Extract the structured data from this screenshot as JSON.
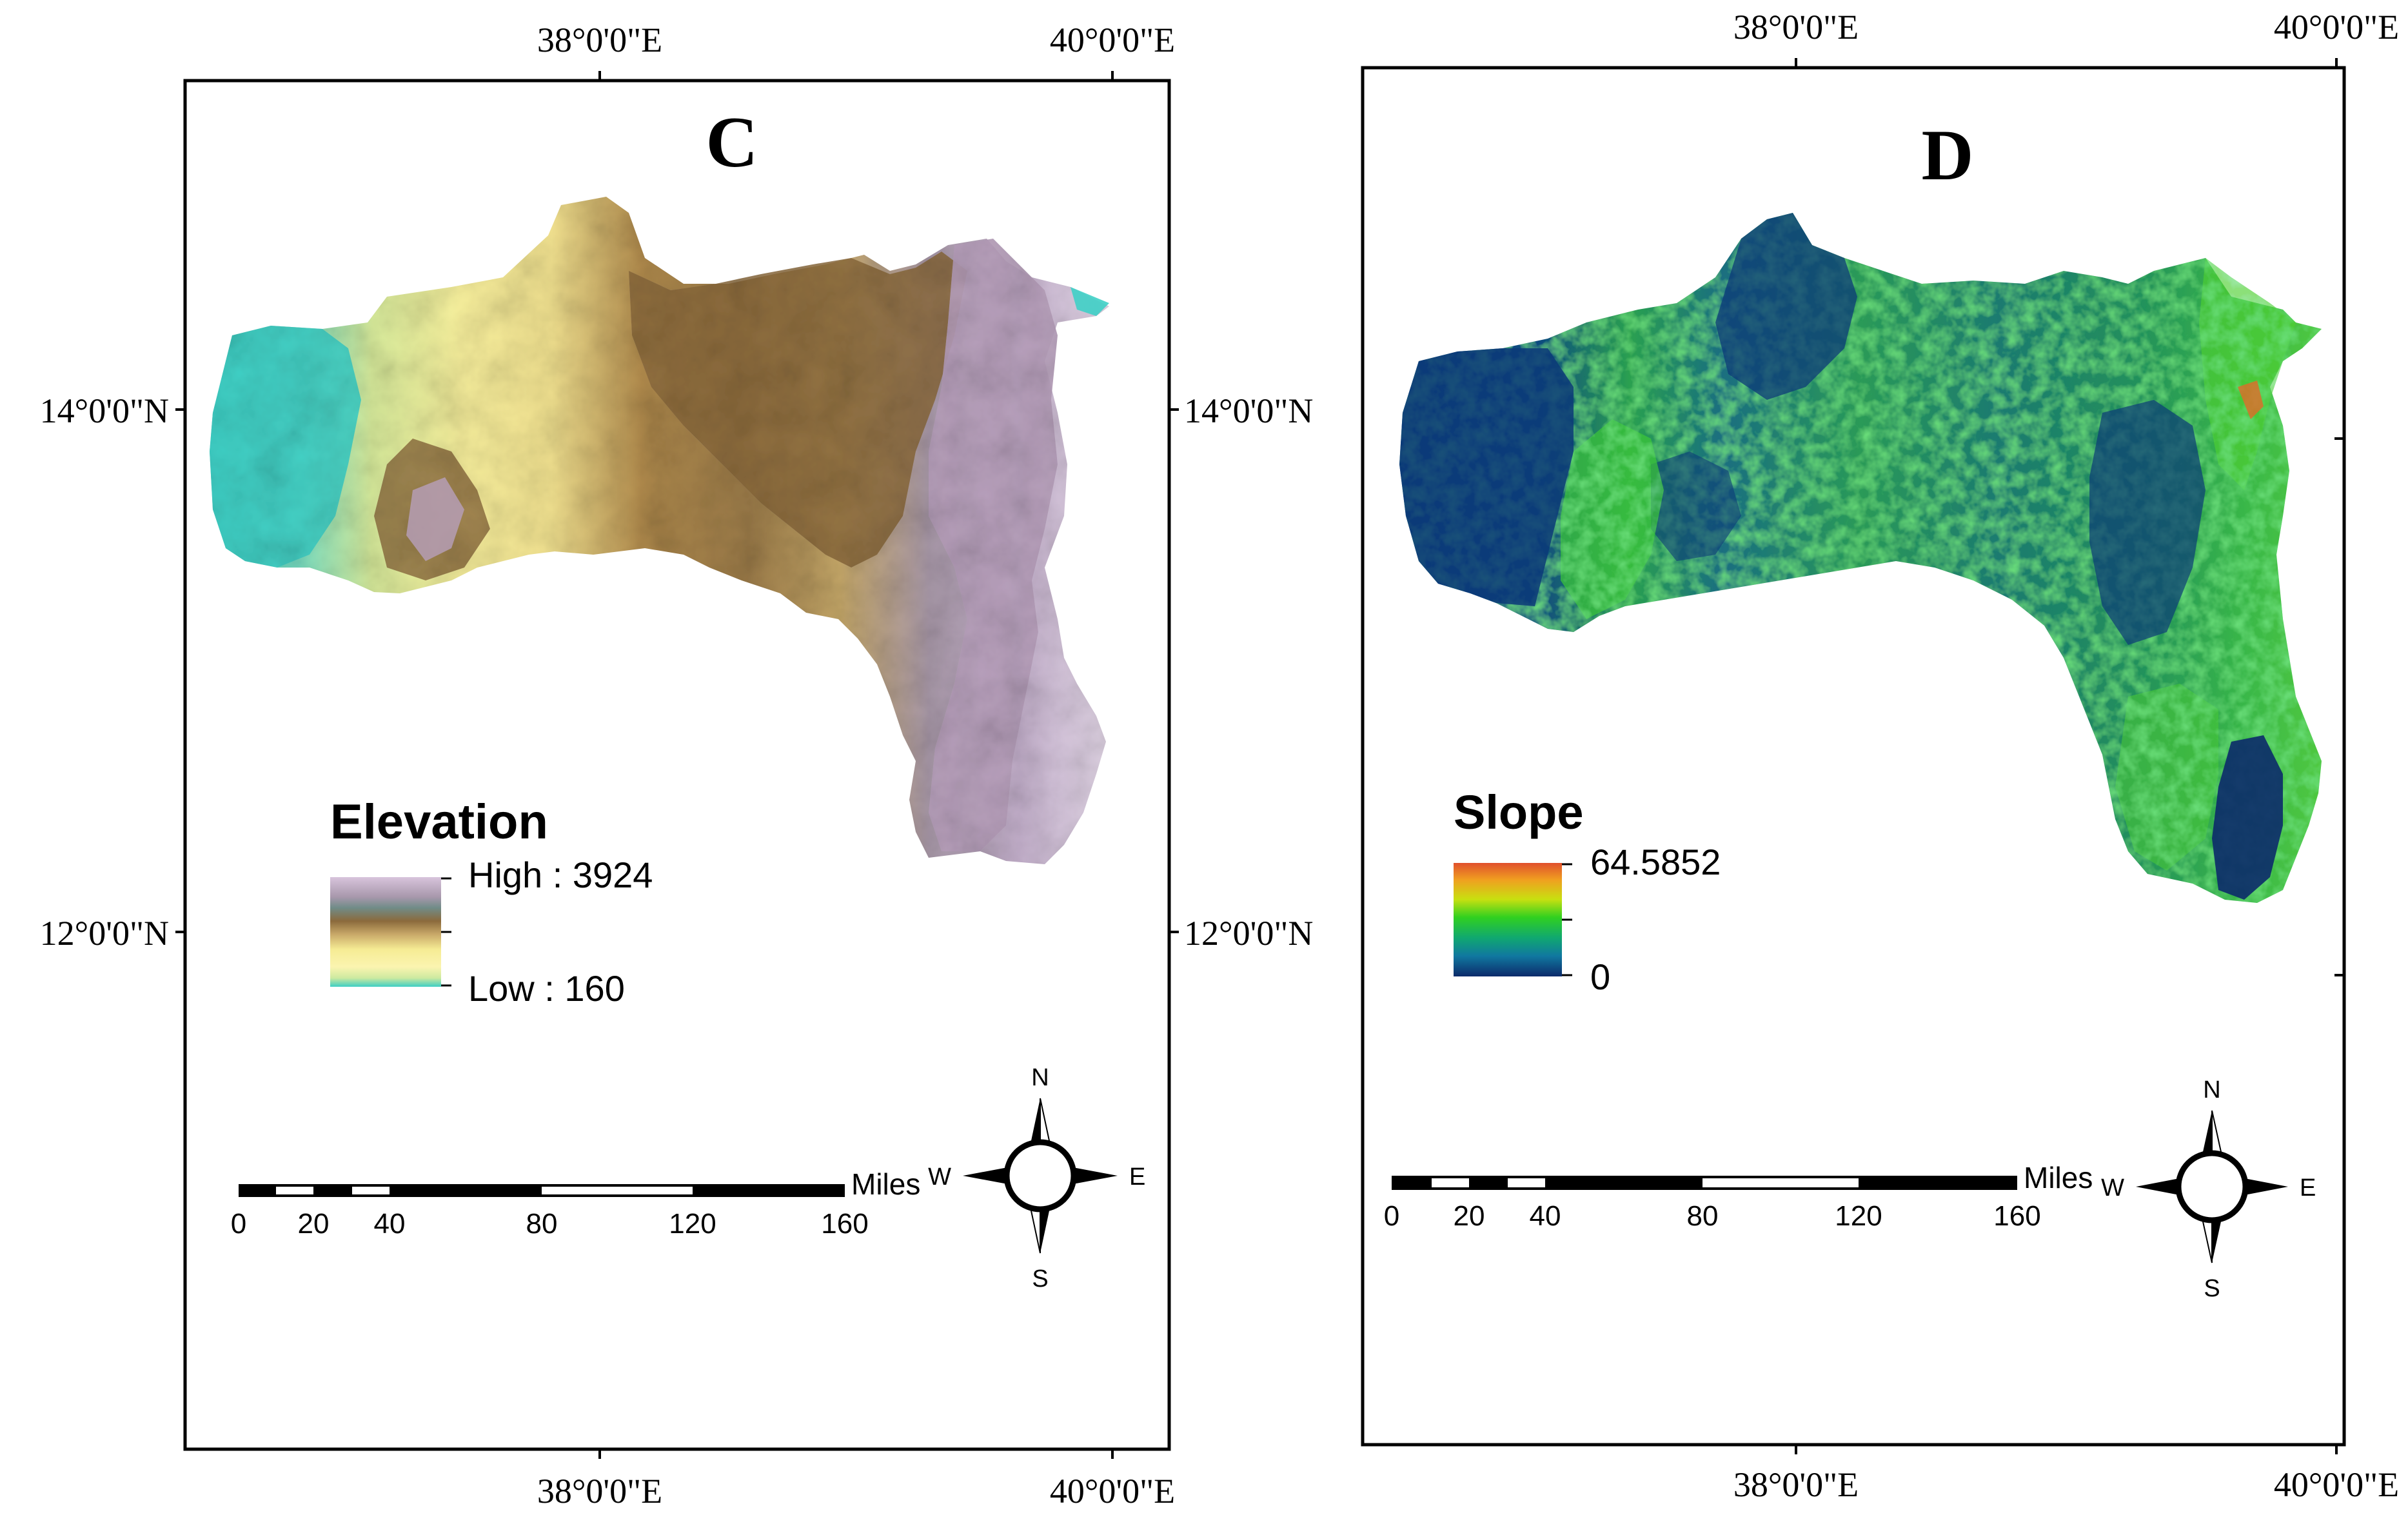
{
  "panels": [
    {
      "id": "C",
      "letter": "C",
      "top_lon_labels": [
        "38°0'0\"E",
        "40°0'0\"E"
      ],
      "bottom_lon_labels": [
        "38°0'0\"E",
        "40°0'0\"E"
      ],
      "left_lat_labels": [
        "14°0'0\"N",
        "12°0'0\"N"
      ],
      "right_lat_labels": [
        "14°0'0\"N",
        "12°0'0\"N"
      ],
      "legend": {
        "title": "Elevation",
        "high_label": "High : 3924",
        "low_label": "Low : 160",
        "ramp_colors": [
          "#c8a8cc",
          "#a08ea6",
          "#7a8c88",
          "#8b6a3c",
          "#a8824a",
          "#d8c070",
          "#f4ea8c",
          "#fbf3a8",
          "#e0ec90",
          "#40d0c0"
        ]
      },
      "scale_bar": {
        "unit": "Miles",
        "ticks": [
          "0",
          "20",
          "40",
          "80",
          "120",
          "160"
        ]
      },
      "north_arrow": {
        "n": "N",
        "s": "S",
        "e": "E",
        "w": "W"
      }
    },
    {
      "id": "D",
      "letter": "D",
      "top_lon_labels": [
        "38°0'0\"E",
        "40°0'0\"E"
      ],
      "bottom_lon_labels": [
        "38°0'0\"E",
        "40°0'0\"E"
      ],
      "left_lat_labels": [],
      "right_lat_labels": [],
      "legend": {
        "title": "Slope",
        "high_label": "64.5852",
        "low_label": "0",
        "ramp_colors": [
          "#e0502c",
          "#f4a020",
          "#c8e010",
          "#40d020",
          "#10b050",
          "#1090a0",
          "#104c8c",
          "#0c2a6a"
        ]
      },
      "scale_bar": {
        "unit": "Miles",
        "ticks": [
          "0",
          "20",
          "40",
          "80",
          "120",
          "160"
        ]
      },
      "north_arrow": {
        "n": "N",
        "s": "S",
        "e": "E",
        "w": "W"
      }
    }
  ],
  "colors": {
    "elevation_low": "#3ecfc4",
    "elevation_mid": "#f6ee98",
    "elevation_brown": "#8b6a3c",
    "elevation_high": "#b8a0bc",
    "slope_low": "#0c3c7a",
    "slope_mid": "#20b860",
    "slope_high": "#e05028",
    "frame": "#000000"
  }
}
